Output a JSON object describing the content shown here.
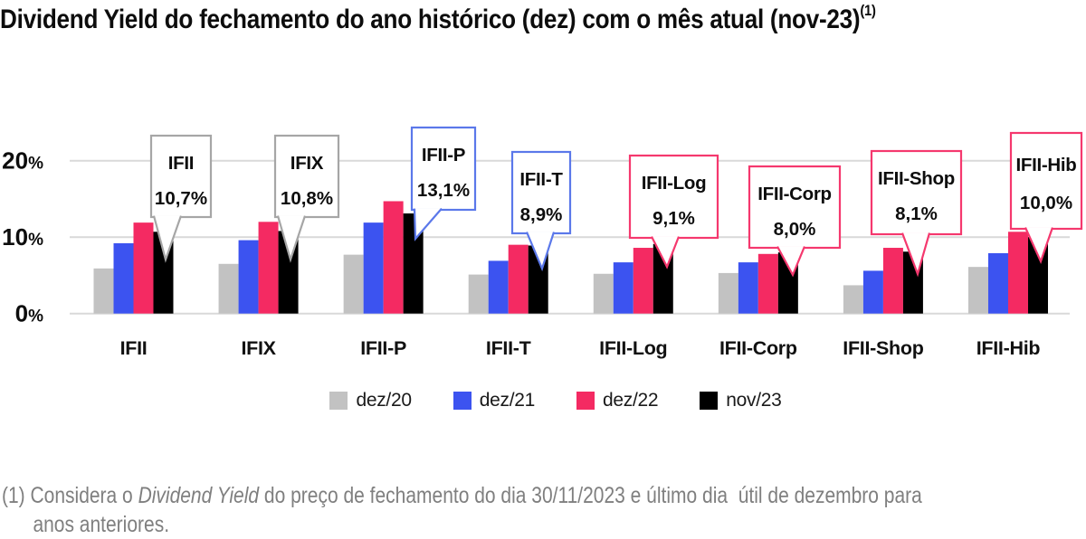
{
  "title": {
    "text": "Dividend Yield do fechamento do ano histórico (dez) com o mês atual (nov-23)",
    "superscript": "(1)"
  },
  "chart_data": {
    "type": "bar",
    "title": "Dividend Yield do fechamento do ano histórico (dez) com o mês atual (nov-23) (1)",
    "categories": [
      "IFII",
      "IFIX",
      "IFII-P",
      "IFII-T",
      "IFII-Log",
      "IFII-Corp",
      "IFII-Shop",
      "IFII-Hib"
    ],
    "series": [
      {
        "name": "dez/20",
        "color": "#c2c2c2",
        "values": [
          5.9,
          6.5,
          7.7,
          5.1,
          5.2,
          5.3,
          3.7,
          6.1
        ]
      },
      {
        "name": "dez/21",
        "color": "#3c53f0",
        "values": [
          9.2,
          9.6,
          11.9,
          6.9,
          6.7,
          6.7,
          5.6,
          7.9
        ]
      },
      {
        "name": "dez/22",
        "color": "#f42a62",
        "values": [
          11.9,
          12.0,
          14.7,
          9.0,
          8.6,
          7.8,
          8.6,
          10.7
        ]
      },
      {
        "name": "nov/23",
        "color": "#000000",
        "values": [
          10.7,
          10.8,
          13.1,
          8.9,
          9.1,
          8.0,
          8.1,
          10.0
        ]
      }
    ],
    "ylim": [
      0,
      20
    ],
    "yticks": [
      {
        "value": 0,
        "label": "0%"
      },
      {
        "value": 10,
        "label": "10%"
      },
      {
        "value": 20,
        "label": "20%"
      }
    ],
    "grid": true,
    "legend_position": "bottom",
    "callouts": [
      {
        "category": "IFII",
        "label": "IFII",
        "value": 10.7,
        "value_label": "10,7%",
        "border_color": "#a6a6a6"
      },
      {
        "category": "IFIX",
        "label": "IFIX",
        "value": 10.8,
        "value_label": "10,8%",
        "border_color": "#a6a6a6"
      },
      {
        "category": "IFII-P",
        "label": "IFII-P",
        "value": 13.1,
        "value_label": "13,1%",
        "border_color": "#5b78ea"
      },
      {
        "category": "IFII-T",
        "label": "IFII-T",
        "value": 8.9,
        "value_label": "8,9%",
        "border_color": "#5b78ea"
      },
      {
        "category": "IFII-Log",
        "label": "IFII-Log",
        "value": 9.1,
        "value_label": "9,1%",
        "border_color": "#f5386e"
      },
      {
        "category": "IFII-Corp",
        "label": "IFII-Corp",
        "value": 8.0,
        "value_label": "8,0%",
        "border_color": "#f5386e"
      },
      {
        "category": "IFII-Shop",
        "label": "IFII-Shop",
        "value": 8.1,
        "value_label": "8,1%",
        "border_color": "#f5386e"
      },
      {
        "category": "IFII-Hib",
        "label": "IFII-Hib",
        "value": 10.0,
        "value_label": "10,0%",
        "border_color": "#f5386e"
      }
    ]
  },
  "footnote": {
    "prefix": "(1) Considera o ",
    "italic": "Dividend Yield",
    "line1_rest": " do preço de fechamento do dia 30/11/2023 e último dia  útil de dezembro para",
    "line2": "anos anteriores."
  }
}
